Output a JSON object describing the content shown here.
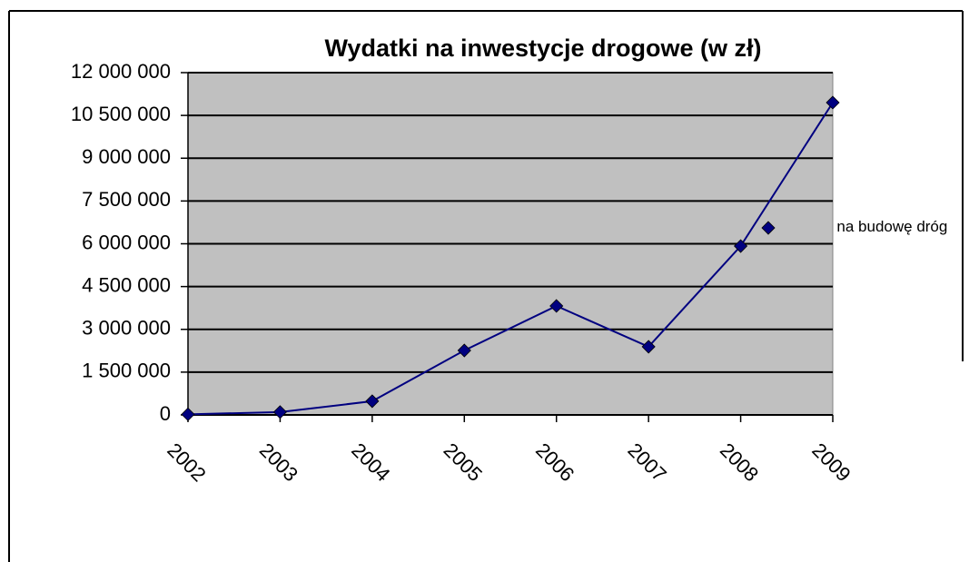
{
  "chart_data": {
    "type": "line",
    "title": "Wydatki na inwestycje drogowe (w zł)",
    "categories": [
      "2002",
      "2003",
      "2004",
      "2005",
      "2006",
      "2007",
      "2008",
      "2009"
    ],
    "series": [
      {
        "name": "wydatki na budowę dróg",
        "color": "#000080",
        "values": [
          20000,
          100000,
          480000,
          2260000,
          3820000,
          2390000,
          5920000,
          10950000
        ]
      }
    ],
    "ylim": [
      0,
      12000000
    ],
    "yticks": [
      {
        "value": 0,
        "label": "0"
      },
      {
        "value": 1500000,
        "label": "1 500 000"
      },
      {
        "value": 3000000,
        "label": "3 000 000"
      },
      {
        "value": 4500000,
        "label": "4 500 000"
      },
      {
        "value": 6000000,
        "label": "6 000 000"
      },
      {
        "value": 7500000,
        "label": "7 500 000"
      },
      {
        "value": 9000000,
        "label": "9 000 000"
      },
      {
        "value": 10500000,
        "label": "10 500 000"
      },
      {
        "value": 12000000,
        "label": "12 000 000"
      }
    ],
    "grid": true,
    "legend": "right",
    "plot_background": "#c0c0c0"
  }
}
